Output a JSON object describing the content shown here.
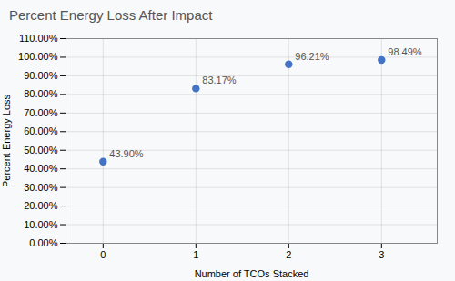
{
  "chart_data": {
    "type": "scatter",
    "title": "Percent Energy Loss After Impact",
    "xlabel": "Number of TCOs Stacked",
    "ylabel": "Percent Energy Loss",
    "x": [
      0,
      1,
      2,
      3
    ],
    "values": [
      0.439,
      0.8317,
      0.9621,
      0.9849
    ],
    "value_labels": [
      "43.90%",
      "83.17%",
      "96.21%",
      "98.49%"
    ],
    "data_labels": true,
    "color": "#4472C4",
    "xlim": [
      -0.4,
      3.6
    ],
    "xticks": [
      0,
      1,
      2,
      3
    ],
    "ylim": [
      0.0,
      1.1
    ],
    "yticks": [
      {
        "value": 0.0,
        "label": "0.00%"
      },
      {
        "value": 0.1,
        "label": "10.00%"
      },
      {
        "value": 0.2,
        "label": "20.00%"
      },
      {
        "value": 0.3,
        "label": "30.00%"
      },
      {
        "value": 0.4,
        "label": "40.00%"
      },
      {
        "value": 0.5,
        "label": "50.00%"
      },
      {
        "value": 0.6,
        "label": "60.00%"
      },
      {
        "value": 0.7,
        "label": "70.00%"
      },
      {
        "value": 0.8,
        "label": "80.00%"
      },
      {
        "value": 0.9,
        "label": "90.00%"
      },
      {
        "value": 1.0,
        "label": "100.00%"
      },
      {
        "value": 1.1,
        "label": "110.00%"
      }
    ],
    "grid": true
  }
}
